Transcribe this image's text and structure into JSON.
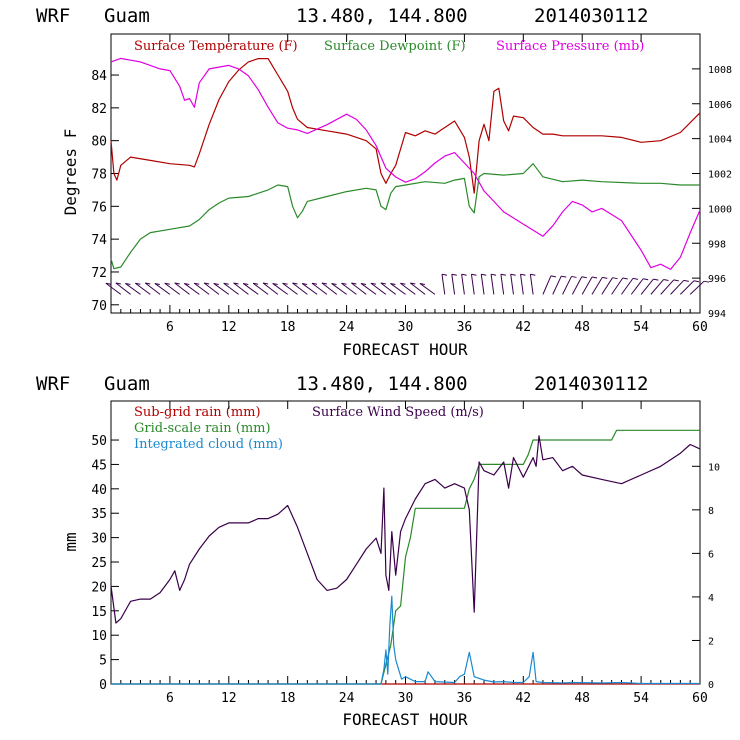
{
  "chart_data": [
    {
      "type": "line",
      "title": {
        "model": "WRF",
        "location": "Guam",
        "coords": "13.480, 144.800",
        "init": "2014030112"
      },
      "xlabel": "FORECAST HOUR",
      "ylabel": "Degrees F",
      "xlim": [
        0,
        60
      ],
      "ylim": [
        69.5,
        86.5
      ],
      "y2lim": [
        994,
        1010
      ],
      "xticks": [
        6,
        12,
        18,
        24,
        30,
        36,
        42,
        48,
        54,
        60
      ],
      "yticks": [
        70,
        72,
        74,
        76,
        78,
        80,
        82,
        84
      ],
      "y2ticks": [
        994,
        996,
        998,
        1000,
        1002,
        1004,
        1006,
        1008
      ],
      "legend_placement": "top-left",
      "grid": false,
      "series": [
        {
          "name": "Surface Temperature (F)",
          "axis": "left",
          "color": "#b00000",
          "x": [
            0,
            0.3,
            0.6,
            1,
            2,
            4,
            6,
            8,
            8.5,
            9,
            10,
            11,
            12,
            13,
            14,
            15,
            16,
            16.5,
            17,
            17.5,
            18,
            18.5,
            19,
            20,
            22,
            24,
            26,
            27,
            27.5,
            28,
            28.5,
            29,
            30,
            31,
            32,
            33,
            34,
            35,
            36,
            36.5,
            37,
            37.5,
            38,
            38.5,
            39,
            39.5,
            40,
            40.5,
            41,
            42,
            43,
            44,
            45,
            46,
            48,
            50,
            52,
            54,
            56,
            58,
            60
          ],
          "values": [
            80.0,
            78.0,
            77.6,
            78.5,
            79.0,
            78.8,
            78.6,
            78.5,
            78.4,
            79.2,
            81.0,
            82.5,
            83.6,
            84.3,
            84.8,
            85.0,
            85.0,
            84.5,
            84.0,
            83.5,
            83.0,
            82.0,
            81.3,
            80.8,
            80.6,
            80.4,
            80.0,
            79.5,
            78.0,
            77.4,
            78.0,
            78.5,
            80.5,
            80.3,
            80.6,
            80.4,
            80.8,
            81.2,
            80.2,
            79.0,
            76.8,
            80.0,
            81.0,
            80.0,
            83.0,
            83.2,
            81.2,
            80.6,
            81.5,
            81.4,
            80.8,
            80.4,
            80.4,
            80.3,
            80.3,
            80.3,
            80.2,
            79.9,
            80.0,
            80.5,
            81.7
          ]
        },
        {
          "name": "Surface Dewpoint (F)",
          "axis": "left",
          "color": "#2a8a2a",
          "x": [
            0,
            0.3,
            1,
            2,
            3,
            4,
            6,
            8,
            9,
            10,
            11,
            12,
            14,
            16,
            17,
            18,
            18.5,
            19,
            19.5,
            20,
            22,
            24,
            26,
            27,
            27.5,
            28,
            28.5,
            29,
            30,
            32,
            34,
            35,
            36,
            36.5,
            37,
            37.5,
            38,
            40,
            42,
            43,
            44,
            46,
            48,
            50,
            54,
            56,
            58,
            60
          ],
          "values": [
            72.8,
            72.2,
            72.3,
            73.2,
            74.0,
            74.4,
            74.6,
            74.8,
            75.2,
            75.8,
            76.2,
            76.5,
            76.6,
            77.0,
            77.3,
            77.2,
            76.0,
            75.3,
            75.7,
            76.3,
            76.6,
            76.9,
            77.1,
            77.0,
            76.0,
            75.8,
            76.8,
            77.2,
            77.3,
            77.5,
            77.4,
            77.6,
            77.7,
            76.0,
            75.6,
            77.8,
            78.0,
            77.9,
            78.0,
            78.6,
            77.8,
            77.5,
            77.6,
            77.5,
            77.4,
            77.4,
            77.3,
            77.3
          ]
        },
        {
          "name": "Surface Pressure (mb)",
          "axis": "right",
          "color": "#e000e0",
          "x": [
            0,
            1,
            2,
            3,
            4,
            5,
            6,
            7,
            7.5,
            8,
            8.5,
            9,
            10,
            11,
            12,
            13,
            14,
            15,
            16,
            17,
            18,
            19,
            20,
            22,
            24,
            25,
            26,
            27,
            28,
            29,
            30,
            31,
            32,
            33,
            34,
            35,
            36,
            37,
            38,
            40,
            42,
            44,
            45,
            46,
            47,
            48,
            49,
            50,
            52,
            54,
            55,
            56,
            57,
            58,
            59,
            60
          ],
          "values": [
            1008.4,
            1008.6,
            1008.5,
            1008.4,
            1008.2,
            1008.0,
            1007.9,
            1007.0,
            1006.2,
            1006.3,
            1005.8,
            1007.2,
            1008.0,
            1008.1,
            1008.2,
            1008.0,
            1007.6,
            1006.8,
            1005.8,
            1004.9,
            1004.6,
            1004.5,
            1004.3,
            1004.8,
            1005.4,
            1005.1,
            1004.5,
            1003.6,
            1002.3,
            1001.8,
            1001.5,
            1001.7,
            1002.1,
            1002.6,
            1003.0,
            1003.2,
            1002.6,
            1002.0,
            1001.0,
            999.8,
            999.1,
            998.4,
            999.0,
            999.8,
            1000.4,
            1000.2,
            999.8,
            1000.0,
            999.3,
            997.6,
            996.6,
            996.8,
            996.5,
            997.2,
            998.6,
            999.9
          ]
        }
      ],
      "wind_barbs": {
        "color": "#3a004a",
        "level": 71
      }
    },
    {
      "type": "line",
      "title": {
        "model": "WRF",
        "location": "Guam",
        "coords": "13.480, 144.800",
        "init": "2014030112"
      },
      "xlabel": "FORECAST HOUR",
      "ylabel": "mm",
      "xlim": [
        0,
        60
      ],
      "ylim": [
        0,
        58
      ],
      "y2lim": [
        0,
        13
      ],
      "xticks": [
        6,
        12,
        18,
        24,
        30,
        36,
        42,
        48,
        54,
        60
      ],
      "yticks": [
        0,
        5,
        10,
        15,
        20,
        25,
        30,
        35,
        40,
        45,
        50
      ],
      "y2ticks": [
        0,
        2,
        4,
        6,
        8,
        10
      ],
      "legend_placement": "top-left",
      "grid": false,
      "series": [
        {
          "name": "Sub-grid rain (mm)",
          "axis": "left",
          "color": "#b00000",
          "x": [
            0,
            60
          ],
          "values": [
            0,
            0
          ]
        },
        {
          "name": "Grid-scale rain (mm)",
          "axis": "left",
          "color": "#2a8a2a",
          "x": [
            0,
            27.5,
            28,
            28.5,
            29,
            29.5,
            30,
            30.5,
            31,
            36,
            36.5,
            37,
            37.5,
            42,
            42.5,
            43,
            51,
            51.5,
            60
          ],
          "values": [
            0,
            0,
            4,
            8,
            15,
            16,
            26,
            30,
            36,
            36,
            40,
            42,
            45,
            45,
            47,
            50,
            50,
            52,
            52
          ]
        },
        {
          "name": "Integrated cloud (mm)",
          "axis": "left",
          "color": "#1a8ad0",
          "x": [
            0,
            27.5,
            27.8,
            28,
            28.2,
            28.4,
            28.6,
            28.8,
            29,
            29.3,
            29.6,
            30,
            31,
            32,
            32.3,
            33,
            35,
            35.5,
            36,
            36.5,
            37,
            38,
            39,
            40,
            41,
            42,
            42.6,
            43,
            43.3,
            44,
            46,
            47,
            50,
            52,
            54,
            56,
            58,
            60
          ],
          "values": [
            0,
            0,
            3,
            7,
            2,
            12,
            18,
            8,
            5,
            3,
            1,
            1.5,
            0.5,
            0.5,
            2.5,
            0.5,
            0.3,
            1.5,
            2,
            6.5,
            1.5,
            0.8,
            0.4,
            0.5,
            0.3,
            0.3,
            1.5,
            6.5,
            0.5,
            0.3,
            0.2,
            0.3,
            0.2,
            0.3,
            0.1,
            0.1,
            0.1,
            0.1
          ]
        },
        {
          "name": "Surface Wind Speed (m/s)",
          "axis": "right",
          "color": "#3a004a",
          "x": [
            0,
            0.5,
            1,
            2,
            3,
            4,
            5,
            6,
            6.5,
            7,
            7.5,
            8,
            9,
            10,
            11,
            12,
            13,
            14,
            15,
            16,
            17,
            18,
            19,
            20,
            21,
            22,
            23,
            24,
            25,
            26,
            27,
            27.5,
            27.8,
            28,
            28.3,
            28.6,
            29,
            29.5,
            30,
            31,
            32,
            33,
            34,
            35,
            36,
            36.5,
            37,
            37.5,
            38,
            39,
            40,
            40.5,
            41,
            42,
            43,
            43.3,
            43.6,
            44,
            45,
            46,
            47,
            48,
            50,
            52,
            54,
            56,
            58,
            59,
            60
          ],
          "values": [
            4.5,
            2.8,
            3.0,
            3.8,
            3.9,
            3.9,
            4.2,
            4.8,
            5.2,
            4.3,
            4.8,
            5.5,
            6.2,
            6.8,
            7.2,
            7.4,
            7.4,
            7.4,
            7.6,
            7.6,
            7.8,
            8.2,
            7.2,
            6.0,
            4.8,
            4.3,
            4.4,
            4.8,
            5.5,
            6.2,
            6.7,
            6.0,
            9.0,
            5.0,
            4.3,
            7.0,
            5.0,
            7.0,
            7.6,
            8.5,
            9.2,
            9.4,
            9.0,
            9.2,
            9.0,
            8.0,
            3.3,
            10.2,
            9.8,
            9.6,
            10.2,
            9.0,
            10.4,
            9.5,
            10.4,
            10.0,
            11.4,
            10.3,
            10.4,
            9.8,
            10.0,
            9.6,
            9.4,
            9.2,
            9.6,
            10.0,
            10.6,
            11.0,
            10.8
          ]
        }
      ]
    }
  ]
}
